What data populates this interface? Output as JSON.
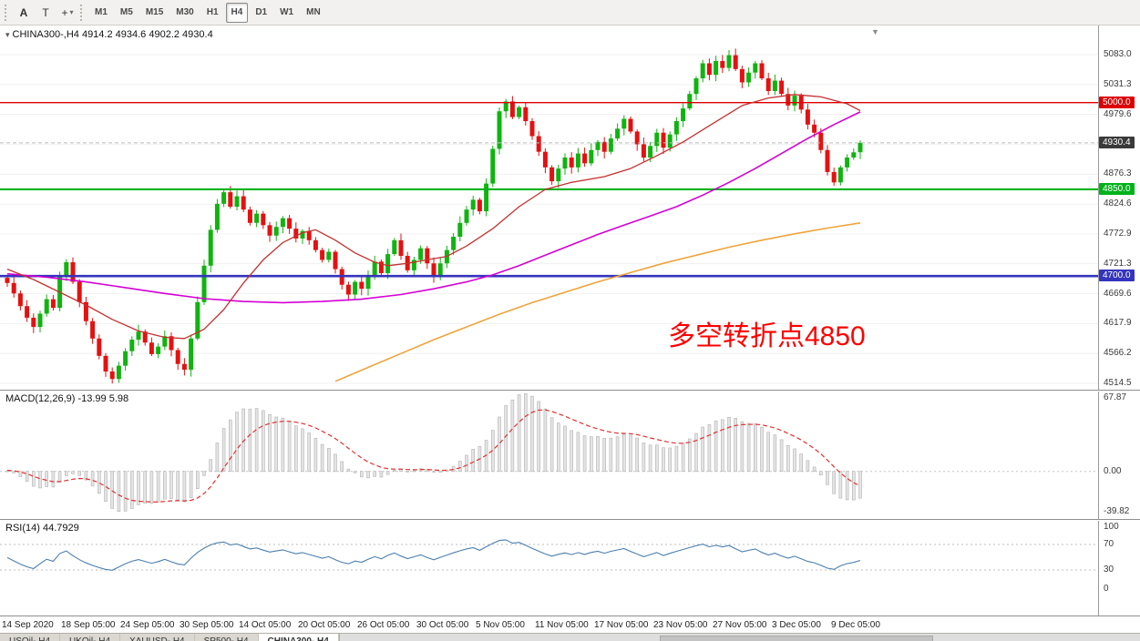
{
  "toolbar": {
    "cursor_button": "A",
    "text_button": "T",
    "crosshair_button": "+",
    "timeframes": [
      "M1",
      "M5",
      "M15",
      "M30",
      "H1",
      "H4",
      "D1",
      "W1",
      "MN"
    ],
    "active_timeframe": "H4"
  },
  "panels": {
    "price": {
      "header": "CHINA300-,H4 4914.2 4934.6 4902.2 4930.4"
    },
    "macd": {
      "header": "MACD(12,26,9) -13.99 5.98"
    },
    "rsi": {
      "header": "RSI(14) 44.7929"
    }
  },
  "chart_data": {
    "type": "candlestick",
    "symbol": "CHINA300",
    "timeframe": "H4",
    "last_candle": {
      "open": 4914.2,
      "high": 4934.6,
      "low": 4902.2,
      "close": 4930.4
    },
    "colors": {
      "bull": "#0fb40f",
      "bear": "#e41111"
    },
    "closes": [
      4688,
      4670,
      4648,
      4628,
      4612,
      4635,
      4660,
      4645,
      4700,
      4724,
      4690,
      4655,
      4622,
      4592,
      4562,
      4535,
      4522,
      4545,
      4570,
      4590,
      4604,
      4585,
      4565,
      4578,
      4596,
      4572,
      4548,
      4538,
      4592,
      4655,
      4718,
      4780,
      4825,
      4845,
      4820,
      4838,
      4815,
      4792,
      4808,
      4788,
      4770,
      4785,
      4800,
      4782,
      4765,
      4778,
      4762,
      4745,
      4728,
      4742,
      4712,
      4685,
      4668,
      4690,
      4678,
      4702,
      4725,
      4705,
      4738,
      4762,
      4735,
      4710,
      4728,
      4748,
      4722,
      4700,
      4722,
      4745,
      4768,
      4792,
      4815,
      4832,
      4812,
      4860,
      4920,
      4985,
      5002,
      4975,
      4992,
      4968,
      4942,
      4915,
      4888,
      4864,
      4886,
      4905,
      4888,
      4912,
      4895,
      4918,
      4932,
      4915,
      4938,
      4955,
      4972,
      4950,
      4928,
      4905,
      4925,
      4948,
      4922,
      4945,
      4968,
      4990,
      5015,
      5042,
      5068,
      5048,
      5072,
      5060,
      5082,
      5058,
      5035,
      5052,
      5068,
      5042,
      5020,
      5038,
      5015,
      4995,
      5012,
      4988,
      4962,
      4948,
      4918,
      4880,
      4862,
      4888,
      4905,
      4914,
      4930.4
    ],
    "y_ticks": [
      "5083.0",
      "5031.3",
      "4979.6",
      "4928.0",
      "4876.3",
      "4824.6",
      "4772.9",
      "4721.3",
      "4669.6",
      "4617.9",
      "4566.2",
      "4514.5"
    ],
    "x_labels": [
      "14 Sep 2020",
      "18 Sep 05:00",
      "24 Sep 05:00",
      "30 Sep 05:00",
      "14 Oct 05:00",
      "20 Oct 05:00",
      "26 Oct 05:00",
      "30 Oct 05:00",
      "5 Nov 05:00",
      "11 Nov 05:00",
      "17 Nov 05:00",
      "23 Nov 05:00",
      "27 Nov 05:00",
      "3 Dec 05:00",
      "9 Dec 05:00"
    ],
    "horizontal_levels": [
      {
        "price": 5000.0,
        "label": "5000.0",
        "color": "#dd0000"
      },
      {
        "price": 4850.0,
        "label": "4850.0",
        "color": "#00b21a"
      },
      {
        "price": 4700.0,
        "label": "4700.0",
        "color": "#3434bd"
      }
    ],
    "bid": {
      "price": 4930.4,
      "label": "4930.4",
      "bg": "#3a3a3a"
    },
    "moving_averages": {
      "red": {
        "color": "#c53030",
        "points": [
          [
            0,
            4712
          ],
          [
            4,
            4694
          ],
          [
            8,
            4672
          ],
          [
            12,
            4650
          ],
          [
            16,
            4625
          ],
          [
            20,
            4605
          ],
          [
            24,
            4594
          ],
          [
            27,
            4592
          ],
          [
            30,
            4608
          ],
          [
            33,
            4642
          ],
          [
            36,
            4688
          ],
          [
            39,
            4728
          ],
          [
            42,
            4758
          ],
          [
            45,
            4775
          ],
          [
            47,
            4780
          ],
          [
            50,
            4762
          ],
          [
            53,
            4740
          ],
          [
            56,
            4724
          ],
          [
            58,
            4718
          ],
          [
            61,
            4722
          ],
          [
            64,
            4728
          ],
          [
            67,
            4734
          ],
          [
            70,
            4752
          ],
          [
            74,
            4782
          ],
          [
            78,
            4820
          ],
          [
            82,
            4850
          ],
          [
            86,
            4862
          ],
          [
            91,
            4872
          ],
          [
            95,
            4886
          ],
          [
            99,
            4908
          ],
          [
            103,
            4932
          ],
          [
            107,
            4960
          ],
          [
            112,
            4995
          ],
          [
            116,
            5008
          ],
          [
            120,
            5014
          ],
          [
            124,
            5010
          ],
          [
            128,
            4998
          ],
          [
            130,
            4986
          ]
        ]
      },
      "magenta": {
        "color": "#d400d4",
        "points": [
          [
            0,
            4704
          ],
          [
            6,
            4698
          ],
          [
            12,
            4690
          ],
          [
            18,
            4680
          ],
          [
            24,
            4670
          ],
          [
            30,
            4661
          ],
          [
            36,
            4656
          ],
          [
            42,
            4654
          ],
          [
            48,
            4656
          ],
          [
            54,
            4660
          ],
          [
            60,
            4668
          ],
          [
            65,
            4678
          ],
          [
            70,
            4690
          ],
          [
            74,
            4702
          ],
          [
            78,
            4718
          ],
          [
            82,
            4736
          ],
          [
            86,
            4754
          ],
          [
            90,
            4772
          ],
          [
            94,
            4788
          ],
          [
            98,
            4804
          ],
          [
            102,
            4820
          ],
          [
            106,
            4840
          ],
          [
            110,
            4862
          ],
          [
            114,
            4886
          ],
          [
            118,
            4912
          ],
          [
            122,
            4938
          ],
          [
            126,
            4962
          ],
          [
            130,
            4984
          ]
        ]
      },
      "orange": {
        "color": "#eea43c",
        "points": [
          [
            50,
            4518
          ],
          [
            55,
            4542
          ],
          [
            60,
            4566
          ],
          [
            65,
            4590
          ],
          [
            70,
            4612
          ],
          [
            75,
            4634
          ],
          [
            80,
            4654
          ],
          [
            85,
            4672
          ],
          [
            90,
            4690
          ],
          [
            95,
            4706
          ],
          [
            100,
            4722
          ],
          [
            105,
            4736
          ],
          [
            110,
            4750
          ],
          [
            115,
            4762
          ],
          [
            120,
            4773
          ],
          [
            125,
            4783
          ],
          [
            130,
            4792
          ]
        ]
      }
    },
    "macd": {
      "params": "12,26,9",
      "value": -13.99,
      "signal": 5.98,
      "ticks": [
        "67.87",
        "0.00",
        "-39.82"
      ]
    },
    "rsi": {
      "period": 14,
      "value": 44.7929,
      "ticks": [
        "100",
        "70",
        "30",
        "0"
      ],
      "levels": [
        70,
        30
      ]
    },
    "annotation": {
      "text": "多空转折点4850",
      "color": "#ff0000"
    }
  },
  "bottom_tabs": {
    "tabs": [
      "USOil-,H4",
      "UKOil-,H4",
      "XAUUSD-,H4",
      "SP500-,H4",
      "CHINA300-,H4"
    ],
    "active": "CHINA300-,H4"
  }
}
